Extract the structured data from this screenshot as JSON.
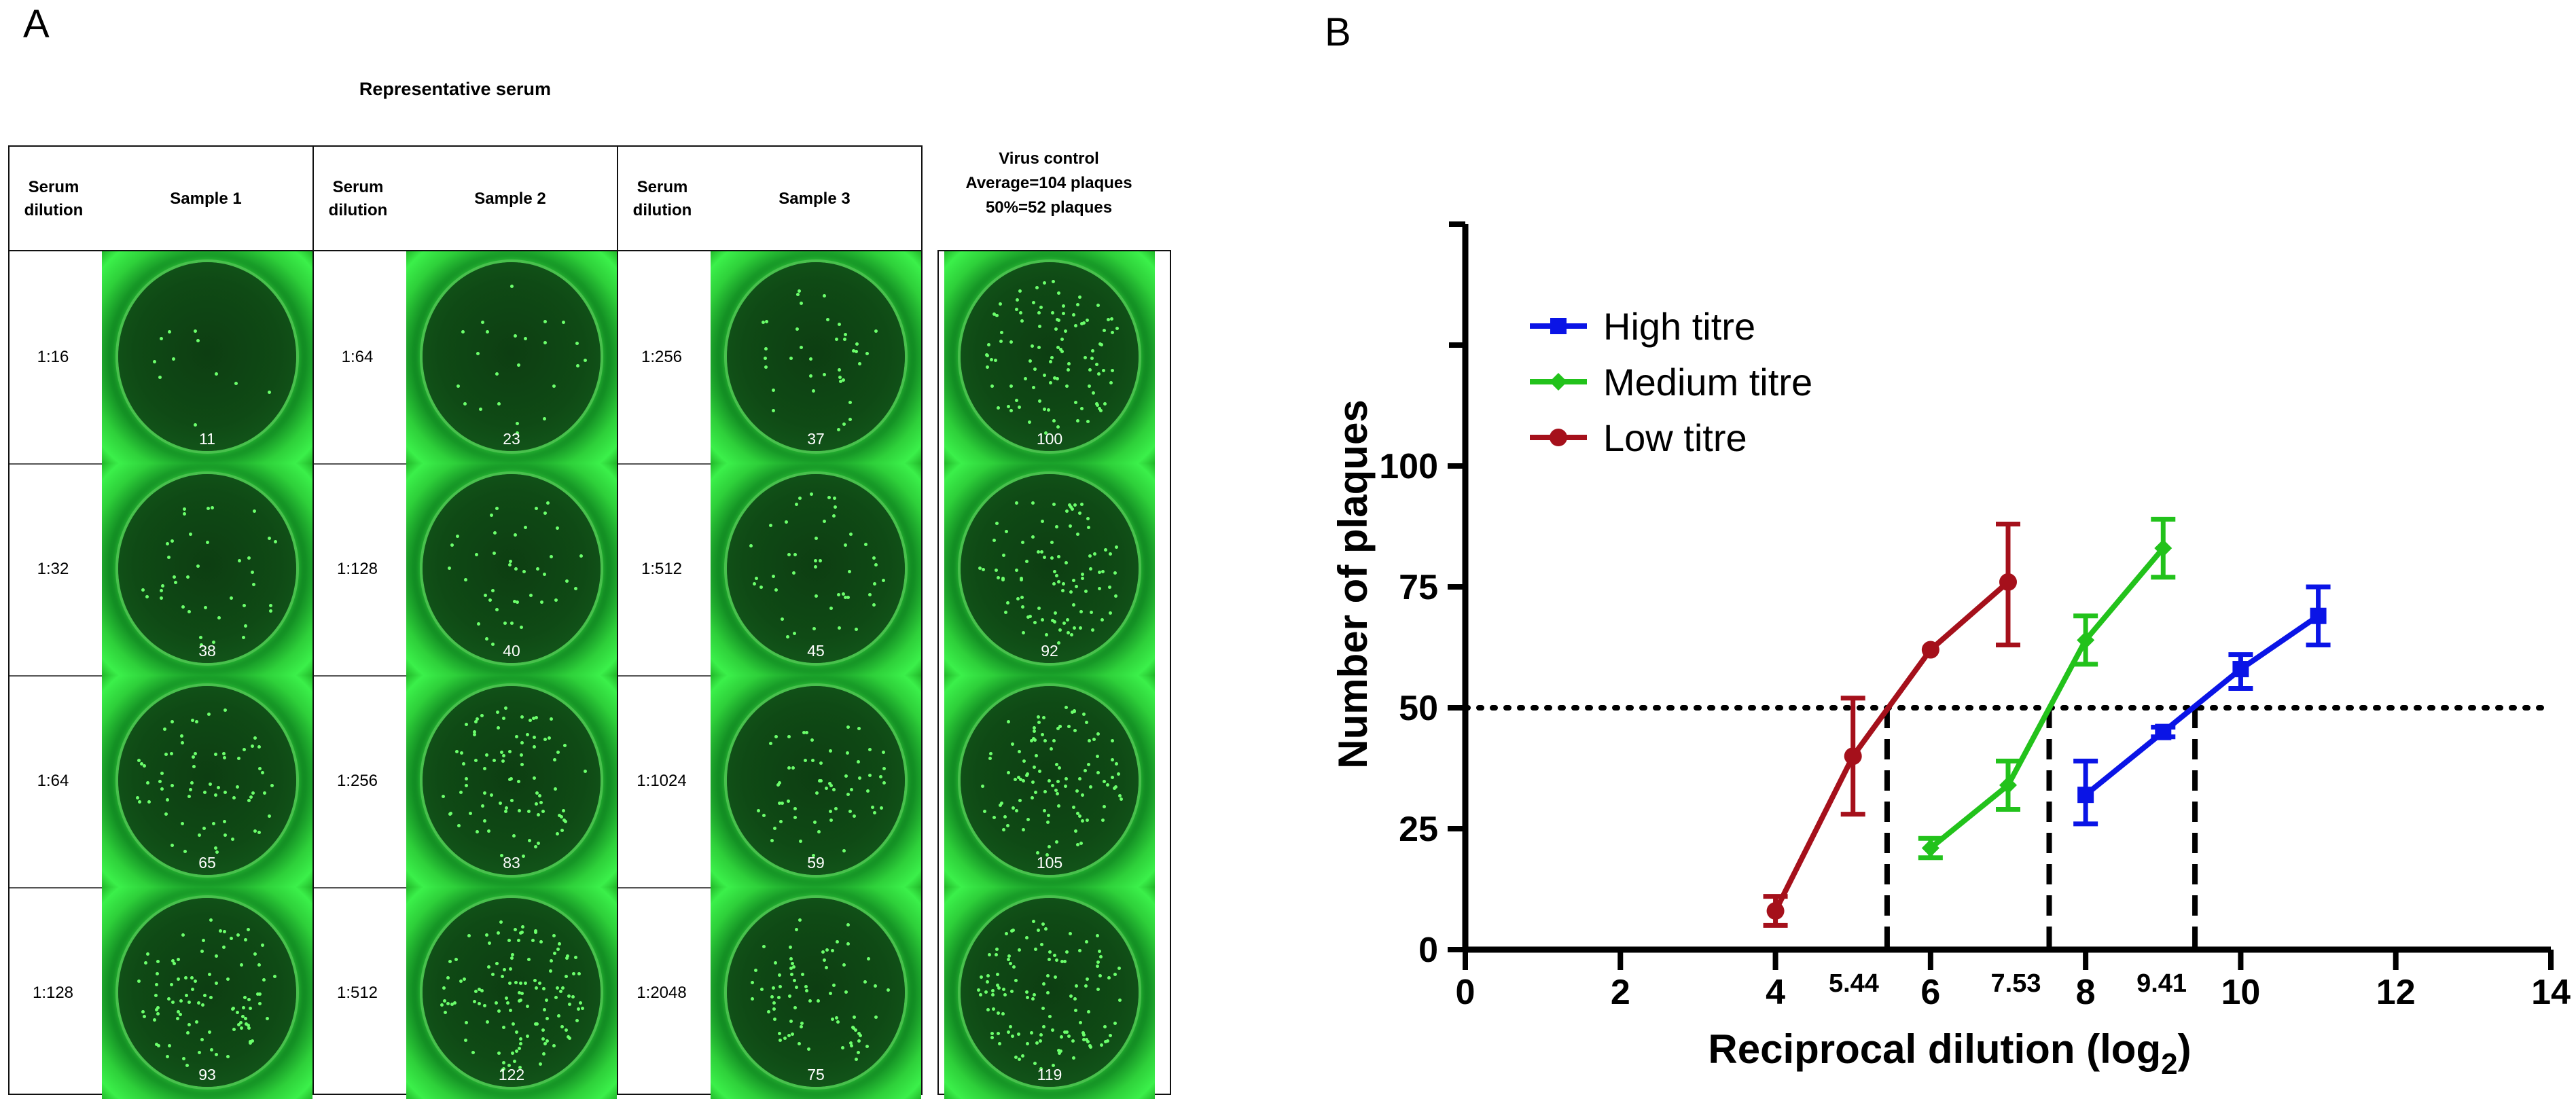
{
  "panel_a": {
    "letter": "A",
    "title": "Representative serum",
    "samples": [
      {
        "dilution_header": "Serum dilution",
        "name": "Sample 1",
        "rows": [
          {
            "dilution": "1:16",
            "count": "11"
          },
          {
            "dilution": "1:32",
            "count": "38"
          },
          {
            "dilution": "1:64",
            "count": "65"
          },
          {
            "dilution": "1:128",
            "count": "93"
          }
        ]
      },
      {
        "dilution_header": "Serum dilution",
        "name": "Sample 2",
        "rows": [
          {
            "dilution": "1:64",
            "count": "23"
          },
          {
            "dilution": "1:128",
            "count": "40"
          },
          {
            "dilution": "1:256",
            "count": "83"
          },
          {
            "dilution": "1:512",
            "count": "122"
          }
        ]
      },
      {
        "dilution_header": "Serum dilution",
        "name": "Sample 3",
        "rows": [
          {
            "dilution": "1:256",
            "count": "37"
          },
          {
            "dilution": "1:512",
            "count": "45"
          },
          {
            "dilution": "1:1024",
            "count": "59"
          },
          {
            "dilution": "1:2048",
            "count": "75"
          }
        ]
      }
    ],
    "virus_control": {
      "title": "Virus control",
      "average": "Average=104 plaques",
      "fifty": "50%=52 plaques",
      "counts": [
        "100",
        "92",
        "105",
        "119"
      ]
    }
  },
  "chart_data": {
    "panel_letter": "B",
    "type": "line",
    "xlabel": "Reciprocal dilution (log",
    "xlabel_sub": "2",
    "xlabel_end": ")",
    "ylabel": "Number of plaques",
    "xlim": [
      0,
      14
    ],
    "ylim": [
      0,
      150
    ],
    "xticks": [
      0,
      2,
      4,
      6,
      8,
      10,
      12,
      14
    ],
    "yticks": [
      0,
      25,
      50,
      75,
      100
    ],
    "reference_line": {
      "y": 50,
      "style": "dotted"
    },
    "intercepts": [
      {
        "x": 5.44,
        "label": "5.44"
      },
      {
        "x": 7.53,
        "label": "7.53"
      },
      {
        "x": 9.41,
        "label": "9.41"
      }
    ],
    "legend_position": "top-left",
    "series": [
      {
        "name": "High titre",
        "color": "#0a14e6",
        "marker": "square",
        "x": [
          8,
          9,
          10,
          11
        ],
        "y": [
          32,
          45,
          58,
          69
        ],
        "err_low": [
          26,
          44,
          54,
          63
        ],
        "err_high": [
          39,
          46,
          61,
          75
        ]
      },
      {
        "name": "Medium titre",
        "color": "#22c21b",
        "marker": "diamond",
        "x": [
          6,
          7,
          8,
          9
        ],
        "y": [
          21,
          34,
          64,
          83
        ],
        "err_low": [
          19,
          29,
          59,
          77
        ],
        "err_high": [
          23,
          39,
          69,
          89
        ]
      },
      {
        "name": "Low titre",
        "color": "#a5101b",
        "marker": "circle",
        "x": [
          4,
          5,
          6,
          7
        ],
        "y": [
          8,
          40,
          62,
          76
        ],
        "err_low": [
          5,
          28,
          62,
          63
        ],
        "err_high": [
          11,
          52,
          62,
          88
        ]
      }
    ]
  }
}
